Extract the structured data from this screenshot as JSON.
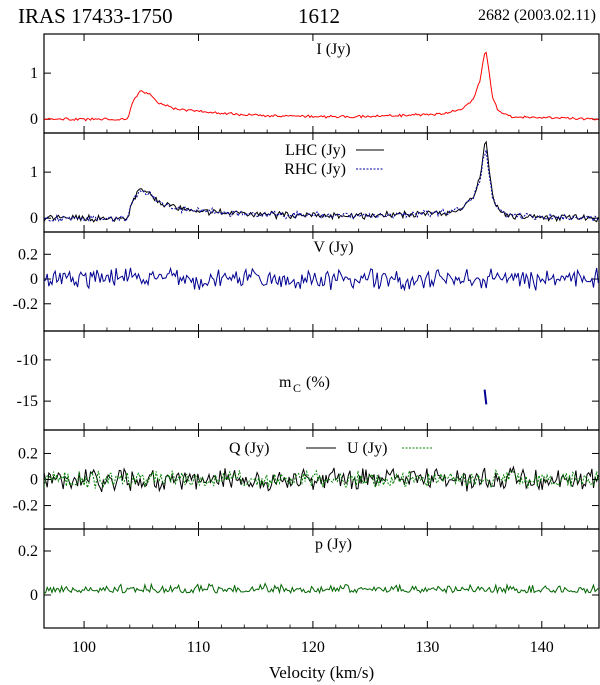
{
  "header": {
    "object": "IRAS 17433-1750",
    "frequency": "1612",
    "observation": "2682 (2003.02.11)"
  },
  "chart_data": {
    "type": "line",
    "x_range": [
      96.5,
      145
    ],
    "xlabel": "Velocity (km/s)",
    "x_ticks": [
      100,
      110,
      120,
      130,
      140
    ],
    "colors": {
      "I": "#ff0000",
      "LHC": "#000000",
      "RHC": "#0000a0",
      "V": "#000090",
      "mC": "#000090",
      "Q": "#000000",
      "U": "#008000",
      "p": "#006400"
    },
    "panels": [
      {
        "id": "I",
        "label": "I (Jy)",
        "ylim": [
          -0.3,
          1.85
        ],
        "yticks": [
          0,
          1
        ],
        "series": [
          {
            "color_key": "I",
            "dash": false,
            "noise": 0.025,
            "seed": 1,
            "base": [
              [
                96.5,
                0.0
              ],
              [
                103.8,
                0.0
              ],
              [
                104.3,
                0.4
              ],
              [
                104.9,
                0.62
              ],
              [
                105.8,
                0.55
              ],
              [
                106.5,
                0.35
              ],
              [
                108.0,
                0.22
              ],
              [
                112.0,
                0.12
              ],
              [
                117.0,
                0.07
              ],
              [
                122.0,
                0.05
              ],
              [
                128.0,
                0.08
              ],
              [
                131.5,
                0.12
              ],
              [
                133.0,
                0.22
              ],
              [
                134.0,
                0.42
              ],
              [
                134.6,
                0.85
              ],
              [
                134.9,
                1.3
              ],
              [
                135.1,
                1.52
              ],
              [
                135.35,
                1.1
              ],
              [
                135.7,
                0.45
              ],
              [
                136.3,
                0.15
              ],
              [
                137.5,
                0.05
              ],
              [
                145.0,
                0.0
              ]
            ]
          }
        ]
      },
      {
        "id": "LHCRHC",
        "label": "",
        "ylim": [
          -0.3,
          1.85
        ],
        "yticks": [
          0,
          1
        ],
        "legend": [
          {
            "text": "LHC (Jy)",
            "color_key": "LHC",
            "dash": false
          },
          {
            "text": "RHC (Jy)",
            "color_key": "RHC",
            "dash": true
          }
        ],
        "series": [
          {
            "color_key": "LHC",
            "dash": false,
            "noise": 0.06,
            "seed": 2,
            "base": [
              [
                96.5,
                0.0
              ],
              [
                103.8,
                0.0
              ],
              [
                104.3,
                0.4
              ],
              [
                104.9,
                0.65
              ],
              [
                105.8,
                0.55
              ],
              [
                106.5,
                0.35
              ],
              [
                108.0,
                0.22
              ],
              [
                112.0,
                0.12
              ],
              [
                117.0,
                0.07
              ],
              [
                122.0,
                0.05
              ],
              [
                128.0,
                0.08
              ],
              [
                131.5,
                0.12
              ],
              [
                133.0,
                0.22
              ],
              [
                134.0,
                0.42
              ],
              [
                134.6,
                0.9
              ],
              [
                134.9,
                1.4
              ],
              [
                135.1,
                1.72
              ],
              [
                135.35,
                1.15
              ],
              [
                135.7,
                0.45
              ],
              [
                136.3,
                0.15
              ],
              [
                137.5,
                0.05
              ],
              [
                145.0,
                0.0
              ]
            ]
          },
          {
            "color_key": "RHC",
            "dash": true,
            "noise": 0.06,
            "seed": 3,
            "base": [
              [
                96.5,
                0.0
              ],
              [
                103.8,
                0.0
              ],
              [
                104.3,
                0.38
              ],
              [
                104.9,
                0.6
              ],
              [
                105.8,
                0.52
              ],
              [
                106.5,
                0.33
              ],
              [
                108.0,
                0.2
              ],
              [
                112.0,
                0.12
              ],
              [
                117.0,
                0.07
              ],
              [
                122.0,
                0.05
              ],
              [
                128.0,
                0.08
              ],
              [
                131.5,
                0.12
              ],
              [
                133.0,
                0.22
              ],
              [
                134.0,
                0.42
              ],
              [
                134.6,
                0.85
              ],
              [
                134.9,
                1.3
              ],
              [
                135.1,
                1.48
              ],
              [
                135.35,
                1.05
              ],
              [
                135.7,
                0.42
              ],
              [
                136.3,
                0.15
              ],
              [
                137.5,
                0.05
              ],
              [
                145.0,
                0.0
              ]
            ]
          }
        ]
      },
      {
        "id": "V",
        "label": "V (Jy)",
        "ylim": [
          -0.42,
          0.38
        ],
        "yticks": [
          0.2,
          0,
          -0.2
        ],
        "series": [
          {
            "color_key": "V",
            "dash": false,
            "noise": 0.065,
            "seed": 4,
            "base": [
              [
                96.5,
                0.0
              ],
              [
                145.0,
                0.0
              ]
            ]
          }
        ]
      },
      {
        "id": "mC",
        "label": "mC (%)",
        "ylim": [
          -18.5,
          -6.5
        ],
        "yticks": [
          -10,
          -15
        ],
        "series": [
          {
            "color_key": "mC",
            "dash": false,
            "noise": 0,
            "seed": 0,
            "base": [
              [
                135.0,
                -13.6
              ],
              [
                135.15,
                -15.4
              ]
            ]
          }
        ]
      },
      {
        "id": "QU",
        "label": "",
        "ylim": [
          -0.38,
          0.38
        ],
        "yticks": [
          0.2,
          0,
          -0.2
        ],
        "legend": [
          {
            "text": "Q (Jy)",
            "color_key": "Q",
            "dash": false
          },
          {
            "text": "U (Jy)",
            "color_key": "U",
            "dash": true
          }
        ],
        "series": [
          {
            "color_key": "Q",
            "dash": false,
            "noise": 0.07,
            "seed": 5,
            "base": [
              [
                96.5,
                0.0
              ],
              [
                145.0,
                0.0
              ]
            ]
          },
          {
            "color_key": "U",
            "dash": true,
            "noise": 0.055,
            "seed": 6,
            "base": [
              [
                96.5,
                0.0
              ],
              [
                145.0,
                0.0
              ]
            ]
          }
        ]
      },
      {
        "id": "p",
        "label": "p (Jy)",
        "ylim": [
          -0.15,
          0.3
        ],
        "yticks": [
          0.2,
          0
        ],
        "series": [
          {
            "color_key": "p",
            "dash": false,
            "noise": 0.03,
            "seed": 7,
            "positive": true,
            "offset": 0.03,
            "base": [
              [
                96.5,
                0.0
              ],
              [
                145.0,
                0.0
              ]
            ]
          }
        ]
      }
    ]
  }
}
